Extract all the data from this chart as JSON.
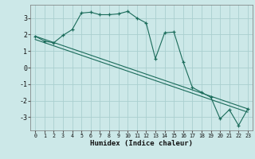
{
  "title": "",
  "xlabel": "Humidex (Indice chaleur)",
  "ylabel": "",
  "bg_color": "#cce8e8",
  "grid_color": "#aacfcf",
  "line_color": "#1a6b5a",
  "ylim": [
    -3.8,
    3.8
  ],
  "xlim": [
    -0.5,
    23.5
  ],
  "yticks": [
    -3,
    -2,
    -1,
    0,
    1,
    2,
    3
  ],
  "xticks": [
    0,
    1,
    2,
    3,
    4,
    5,
    6,
    7,
    8,
    9,
    10,
    11,
    12,
    13,
    14,
    15,
    16,
    17,
    18,
    19,
    20,
    21,
    22,
    23
  ],
  "line1_x": [
    0,
    1,
    2,
    3,
    4,
    5,
    6,
    7,
    8,
    9,
    10,
    11,
    12,
    13,
    14,
    15,
    16,
    17,
    18,
    19,
    20,
    21,
    22,
    23
  ],
  "line1_y": [
    1.9,
    1.6,
    1.5,
    1.95,
    2.3,
    3.3,
    3.35,
    3.2,
    3.2,
    3.25,
    3.4,
    3.0,
    2.7,
    0.55,
    2.1,
    2.15,
    0.35,
    -1.2,
    -1.5,
    -1.8,
    -3.1,
    -2.55,
    -3.5,
    -2.5
  ],
  "line2_x": [
    0,
    23
  ],
  "line2_y": [
    1.9,
    -2.5
  ],
  "line3_x": [
    0,
    23
  ],
  "line3_y": [
    1.7,
    -2.7
  ],
  "marker": "+"
}
